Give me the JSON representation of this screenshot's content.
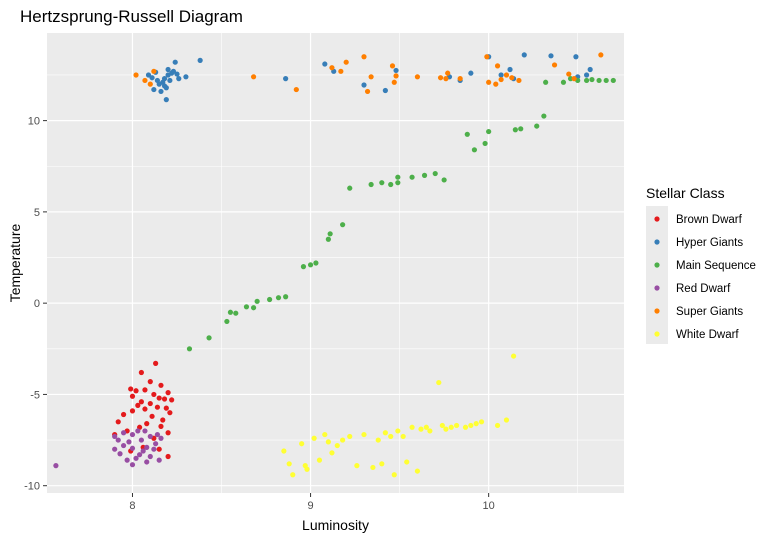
{
  "chart_data": {
    "type": "scatter",
    "title": "Hertzsprung-Russell Diagram",
    "xlabel": "Luminosity",
    "ylabel": "Temperature",
    "xlim": [
      7.52,
      10.76
    ],
    "ylim": [
      -10.4,
      14.8
    ],
    "xticks": [
      8,
      9,
      10
    ],
    "yticks": [
      -10,
      -5,
      0,
      5,
      10
    ],
    "grid": true,
    "legend_title": "Stellar Class",
    "legend_position": "right",
    "series": [
      {
        "name": "Brown Dwarf",
        "color": "#E41A1C",
        "points": [
          [
            8.13,
            -3.3
          ],
          [
            8.05,
            -3.8
          ],
          [
            8.1,
            -4.3
          ],
          [
            8.16,
            -4.5
          ],
          [
            7.99,
            -4.7
          ],
          [
            8.02,
            -4.8
          ],
          [
            8.07,
            -4.75
          ],
          [
            8.2,
            -4.9
          ],
          [
            8.12,
            -5.0
          ],
          [
            8.0,
            -5.1
          ],
          [
            8.15,
            -5.2
          ],
          [
            8.18,
            -5.25
          ],
          [
            8.22,
            -5.3
          ],
          [
            8.05,
            -5.4
          ],
          [
            8.1,
            -5.5
          ],
          [
            8.03,
            -5.6
          ],
          [
            8.14,
            -5.7
          ],
          [
            8.19,
            -5.75
          ],
          [
            8.07,
            -5.8
          ],
          [
            8.0,
            -5.9
          ],
          [
            8.21,
            -6.0
          ],
          [
            7.95,
            -6.1
          ],
          [
            8.11,
            -6.2
          ],
          [
            8.17,
            -6.4
          ],
          [
            7.92,
            -6.5
          ],
          [
            8.08,
            -6.6
          ],
          [
            8.16,
            -6.75
          ],
          [
            8.04,
            -6.8
          ],
          [
            7.97,
            -7.0
          ],
          [
            8.2,
            -7.1
          ],
          [
            7.9,
            -7.2
          ],
          [
            8.12,
            -7.4
          ],
          [
            8.2,
            -8.4
          ],
          [
            7.99,
            -8.1
          ],
          [
            8.06,
            -7.9
          ],
          [
            8.15,
            -8.0
          ]
        ]
      },
      {
        "name": "Hyper Giants",
        "color": "#377EB8",
        "points": [
          [
            8.24,
            13.2
          ],
          [
            8.38,
            13.3
          ],
          [
            8.15,
            12.0
          ],
          [
            8.18,
            12.3
          ],
          [
            8.2,
            12.5
          ],
          [
            8.14,
            12.2
          ],
          [
            8.22,
            12.6
          ],
          [
            8.17,
            12.1
          ],
          [
            8.19,
            11.8
          ],
          [
            8.12,
            11.7
          ],
          [
            8.25,
            12.55
          ],
          [
            8.3,
            12.4
          ],
          [
            8.09,
            12.5
          ],
          [
            8.21,
            12.2
          ],
          [
            8.16,
            11.6
          ],
          [
            8.19,
            11.15
          ],
          [
            8.23,
            12.7
          ],
          [
            8.13,
            12.65
          ],
          [
            8.26,
            12.3
          ],
          [
            8.2,
            12.8
          ],
          [
            8.18,
            11.9
          ],
          [
            8.11,
            12.35
          ],
          [
            8.86,
            12.3
          ],
          [
            9.08,
            13.1
          ],
          [
            9.13,
            12.7
          ],
          [
            9.3,
            11.95
          ],
          [
            9.42,
            11.65
          ],
          [
            9.48,
            12.75
          ],
          [
            9.84,
            12.2
          ],
          [
            9.9,
            12.6
          ],
          [
            10.07,
            12.5
          ],
          [
            10.12,
            12.8
          ],
          [
            10.2,
            13.6
          ],
          [
            10.35,
            13.55
          ],
          [
            10.49,
            13.5
          ],
          [
            10.55,
            12.5
          ],
          [
            10.57,
            12.8
          ],
          [
            10.0,
            13.5
          ],
          [
            9.78,
            12.4
          ],
          [
            10.14,
            12.3
          ],
          [
            10.5,
            12.4
          ]
        ]
      },
      {
        "name": "Main Sequence",
        "color": "#4DAF4A",
        "points": [
          [
            8.32,
            -2.5
          ],
          [
            8.43,
            -1.9
          ],
          [
            8.53,
            -1.0
          ],
          [
            8.55,
            -0.5
          ],
          [
            8.58,
            -0.55
          ],
          [
            8.64,
            -0.2
          ],
          [
            8.68,
            -0.25
          ],
          [
            8.7,
            0.1
          ],
          [
            8.77,
            0.2
          ],
          [
            8.82,
            0.3
          ],
          [
            8.86,
            0.35
          ],
          [
            8.96,
            2.0
          ],
          [
            9.0,
            2.1
          ],
          [
            9.03,
            2.2
          ],
          [
            9.1,
            3.5
          ],
          [
            9.11,
            3.8
          ],
          [
            9.18,
            4.3
          ],
          [
            9.22,
            6.3
          ],
          [
            9.34,
            6.5
          ],
          [
            9.4,
            6.6
          ],
          [
            9.45,
            6.5
          ],
          [
            9.49,
            6.6
          ],
          [
            9.49,
            6.9
          ],
          [
            9.57,
            6.9
          ],
          [
            9.64,
            7.0
          ],
          [
            9.7,
            7.1
          ],
          [
            9.75,
            6.75
          ],
          [
            9.88,
            9.25
          ],
          [
            9.92,
            8.4
          ],
          [
            9.98,
            8.75
          ],
          [
            10.0,
            9.4
          ],
          [
            10.15,
            9.5
          ],
          [
            10.18,
            9.55
          ],
          [
            10.27,
            9.7
          ],
          [
            10.31,
            10.25
          ],
          [
            10.32,
            12.1
          ],
          [
            10.42,
            12.1
          ],
          [
            10.46,
            12.3
          ],
          [
            10.5,
            12.2
          ],
          [
            10.55,
            12.2
          ],
          [
            10.58,
            12.25
          ],
          [
            10.62,
            12.2
          ],
          [
            10.66,
            12.2
          ],
          [
            10.7,
            12.2
          ]
        ]
      },
      {
        "name": "Red Dwarf",
        "color": "#984EA3",
        "points": [
          [
            7.57,
            -8.9
          ],
          [
            7.9,
            -7.3
          ],
          [
            7.92,
            -7.5
          ],
          [
            7.95,
            -7.8
          ],
          [
            7.9,
            -8.0
          ],
          [
            7.93,
            -8.25
          ],
          [
            7.98,
            -7.6
          ],
          [
            8.0,
            -7.2
          ],
          [
            8.03,
            -7.0
          ],
          [
            8.05,
            -7.5
          ],
          [
            8.0,
            -7.95
          ],
          [
            8.06,
            -8.1
          ],
          [
            8.02,
            -8.5
          ],
          [
            7.97,
            -8.6
          ],
          [
            8.1,
            -7.3
          ],
          [
            8.13,
            -7.7
          ],
          [
            8.08,
            -7.9
          ],
          [
            8.14,
            -7.2
          ],
          [
            8.16,
            -7.4
          ],
          [
            8.04,
            -8.3
          ],
          [
            8.1,
            -8.4
          ],
          [
            8.15,
            -8.6
          ],
          [
            8.0,
            -8.85
          ],
          [
            8.08,
            -8.7
          ],
          [
            7.95,
            -7.1
          ],
          [
            8.07,
            -7.0
          ],
          [
            8.12,
            -8.0
          ]
        ]
      },
      {
        "name": "Super Giants",
        "color": "#FF7F00",
        "points": [
          [
            8.02,
            12.5
          ],
          [
            8.07,
            12.2
          ],
          [
            8.1,
            12.0
          ],
          [
            8.12,
            12.7
          ],
          [
            8.68,
            12.4
          ],
          [
            8.92,
            11.7
          ],
          [
            9.12,
            12.9
          ],
          [
            9.17,
            12.7
          ],
          [
            9.2,
            13.2
          ],
          [
            9.3,
            13.5
          ],
          [
            9.34,
            12.4
          ],
          [
            9.32,
            11.6
          ],
          [
            9.46,
            13.0
          ],
          [
            9.47,
            12.1
          ],
          [
            9.48,
            12.45
          ],
          [
            9.6,
            12.4
          ],
          [
            9.73,
            12.35
          ],
          [
            9.76,
            12.3
          ],
          [
            9.77,
            12.6
          ],
          [
            9.84,
            12.3
          ],
          [
            9.99,
            13.5
          ],
          [
            10.05,
            13.0
          ],
          [
            10.07,
            12.25
          ],
          [
            10.0,
            12.1
          ],
          [
            10.1,
            12.5
          ],
          [
            10.13,
            12.35
          ],
          [
            10.17,
            12.2
          ],
          [
            10.37,
            13.05
          ],
          [
            10.45,
            12.55
          ],
          [
            10.63,
            13.6
          ],
          [
            10.48,
            12.3
          ],
          [
            10.04,
            12.0
          ]
        ]
      },
      {
        "name": "White Dwarf",
        "color": "#FFFF33",
        "points": [
          [
            8.85,
            -8.1
          ],
          [
            8.88,
            -8.8
          ],
          [
            8.9,
            -9.4
          ],
          [
            8.95,
            -7.7
          ],
          [
            8.97,
            -8.9
          ],
          [
            8.98,
            -9.1
          ],
          [
            9.02,
            -7.4
          ],
          [
            9.05,
            -8.6
          ],
          [
            9.08,
            -7.2
          ],
          [
            9.1,
            -7.6
          ],
          [
            9.12,
            -8.2
          ],
          [
            9.15,
            -7.8
          ],
          [
            9.18,
            -7.5
          ],
          [
            9.22,
            -7.3
          ],
          [
            9.26,
            -8.9
          ],
          [
            9.3,
            -7.2
          ],
          [
            9.35,
            -9.0
          ],
          [
            9.38,
            -7.5
          ],
          [
            9.4,
            -8.8
          ],
          [
            9.42,
            -7.1
          ],
          [
            9.45,
            -7.3
          ],
          [
            9.47,
            -9.4
          ],
          [
            9.49,
            -7.0
          ],
          [
            9.52,
            -7.3
          ],
          [
            9.54,
            -8.7
          ],
          [
            9.57,
            -6.8
          ],
          [
            9.6,
            -9.2
          ],
          [
            9.62,
            -6.9
          ],
          [
            9.65,
            -6.8
          ],
          [
            9.67,
            -7.0
          ],
          [
            9.72,
            -4.35
          ],
          [
            9.74,
            -6.7
          ],
          [
            9.76,
            -6.9
          ],
          [
            9.79,
            -6.8
          ],
          [
            9.82,
            -6.7
          ],
          [
            9.87,
            -6.8
          ],
          [
            9.9,
            -6.7
          ],
          [
            9.93,
            -6.6
          ],
          [
            9.96,
            -6.5
          ],
          [
            10.05,
            -6.7
          ],
          [
            10.1,
            -6.4
          ],
          [
            10.14,
            -2.9
          ]
        ]
      }
    ]
  }
}
